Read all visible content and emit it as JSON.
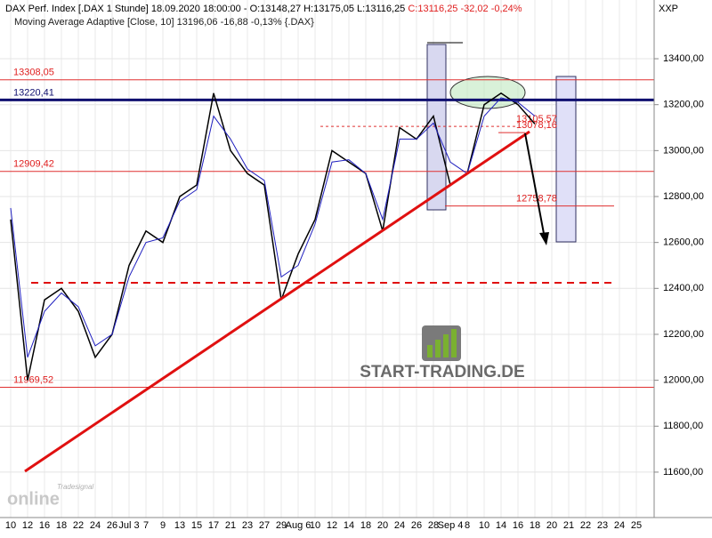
{
  "chart_data": {
    "type": "line",
    "header": {
      "instrument": "DAX Perf. Index [.DAX  1 Stunde] 18.09.2020 18:00:00 - O:13148,27 H:13175,05 L:13116,25",
      "change": "C:13116,25 -32,02 -0,24%",
      "indicator": "Moving Average Adaptive [Close, 10]",
      "indicator_value": "13196,06 -16,88 -0,13% {.DAX}",
      "axis_title": "XXP"
    },
    "categories": [
      "10",
      "12",
      "16",
      "18",
      "22",
      "24",
      "26",
      "Jul 3",
      "7",
      "9",
      "13",
      "15",
      "17",
      "21",
      "23",
      "27",
      "29",
      "Aug 6",
      "10",
      "12",
      "14",
      "18",
      "20",
      "24",
      "26",
      "28",
      "Sep 4",
      "8",
      "10",
      "14",
      "16",
      "18",
      "20",
      "21",
      "22",
      "23",
      "24",
      "25"
    ],
    "series": [
      {
        "color": "#000000",
        "values": [
          12700,
          12000,
          12350,
          12400,
          12300,
          12100,
          12200,
          12500,
          12650,
          12600,
          12800,
          12850,
          13250,
          13000,
          12900,
          12850,
          12350,
          12550,
          12700,
          13000,
          12950,
          12900,
          12650,
          13100,
          13050,
          13150,
          12850,
          12900,
          13200,
          13250,
          13200,
          13116,
          null,
          null,
          null,
          null,
          null,
          null
        ]
      },
      {
        "color": "#1f1fbf",
        "values": [
          12750,
          12100,
          12300,
          12380,
          12320,
          12150,
          12200,
          12450,
          12600,
          12620,
          12780,
          12830,
          13150,
          13050,
          12920,
          12870,
          12450,
          12500,
          12680,
          12950,
          12960,
          12900,
          12700,
          13050,
          13050,
          13120,
          12950,
          12900,
          13150,
          13230,
          13210,
          13150,
          null,
          null,
          null,
          null,
          null,
          null
        ]
      }
    ],
    "levels": [
      {
        "value": 13308.05,
        "label": "13308,05",
        "color": "#e03030"
      },
      {
        "value": 13220.41,
        "label": "13220,41",
        "color": "#101070"
      },
      {
        "value": 12909.42,
        "label": "12909,42",
        "color": "#e03030"
      },
      {
        "value": 11969.52,
        "label": "11969,52",
        "color": "#e03030"
      },
      {
        "value": 13105.57,
        "label": "13105,57",
        "color": "#e03030"
      },
      {
        "value": 13078.16,
        "label": "13078,16",
        "color": "#e03030"
      },
      {
        "value": 12758.78,
        "label": "12758,78",
        "color": "#e03030"
      }
    ],
    "ylim": [
      11410,
      13586
    ],
    "yticks": [
      {
        "value": 11600,
        "label": "11600,00"
      },
      {
        "value": 11800,
        "label": "11800,00"
      },
      {
        "value": 12000,
        "label": "12000,00"
      },
      {
        "value": 12200,
        "label": "12200,00"
      },
      {
        "value": 12400,
        "label": "12400,00"
      },
      {
        "value": 12600,
        "label": "12600,00"
      },
      {
        "value": 12800,
        "label": "12800,00"
      },
      {
        "value": 13000,
        "label": "13000,00"
      },
      {
        "value": 13200,
        "label": "13200,00"
      },
      {
        "value": 13400,
        "label": "13400,00"
      }
    ],
    "watermark": "START-TRADING.DE",
    "logo": "online",
    "logo_small": "Tradesignal"
  }
}
